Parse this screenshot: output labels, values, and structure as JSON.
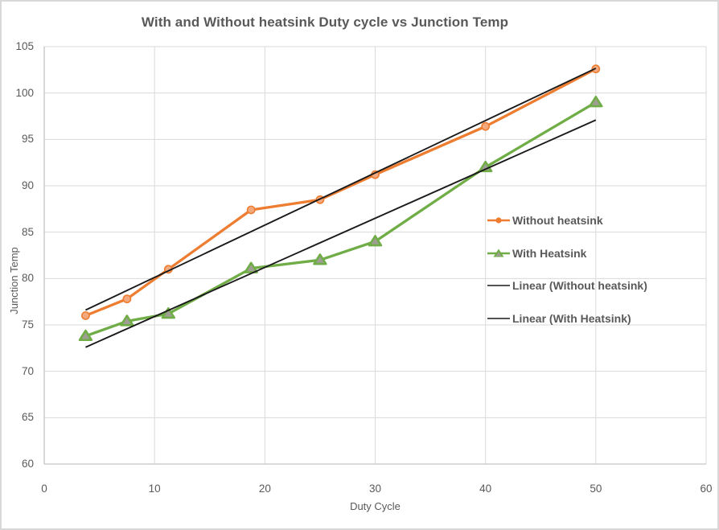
{
  "style": {
    "background": "#FFFFFF",
    "frame_border_color": "#D8D8D8",
    "text_color": "#595959",
    "gridline_color": "#DADADA",
    "axis_line_color": "#C3C3C3"
  },
  "chart_data": {
    "type": "line",
    "title": "With and Without heatsink Duty cycle vs Junction Temp",
    "xlabel": "Duty Cycle",
    "ylabel": "Junction Temp",
    "xlim": [
      0,
      60
    ],
    "ylim": [
      60,
      105
    ],
    "xticks": [
      0,
      10,
      20,
      30,
      40,
      50,
      60
    ],
    "yticks": [
      60,
      65,
      70,
      75,
      80,
      85,
      90,
      95,
      100,
      105
    ],
    "grid": true,
    "legend_position": "inside-right",
    "x": [
      3.75,
      7.5,
      11.25,
      18.75,
      25,
      30,
      40,
      50
    ],
    "series": [
      {
        "name": "Without heatsink",
        "line_color": "#ED7D31",
        "marker": "circle",
        "marker_fill": "#F2A97E",
        "marker_stroke": "#ED7D31",
        "values": [
          76,
          77.8,
          81,
          87.4,
          88.5,
          91.2,
          96.4,
          102.6
        ]
      },
      {
        "name": "With Heatsink",
        "line_color": "#70AD47",
        "marker": "triangle",
        "marker_fill": "#9E9E93",
        "marker_stroke": "#70AD47",
        "values": [
          73.8,
          75.4,
          76.2,
          81.1,
          82,
          84,
          92,
          99
        ]
      }
    ],
    "trendlines": [
      {
        "name": "Linear (Without heatsink)",
        "color": "#1A1A1A",
        "slope": 0.5635,
        "intercept": 74.49,
        "x_range": [
          3.75,
          50
        ]
      },
      {
        "name": "Linear (With Heatsink)",
        "color": "#1A1A1A",
        "slope": 0.5296,
        "intercept": 70.61,
        "x_range": [
          3.75,
          50
        ]
      }
    ],
    "legend": [
      "Without heatsink",
      "With Heatsink",
      "Linear (Without heatsink)",
      "Linear (With Heatsink)"
    ]
  }
}
